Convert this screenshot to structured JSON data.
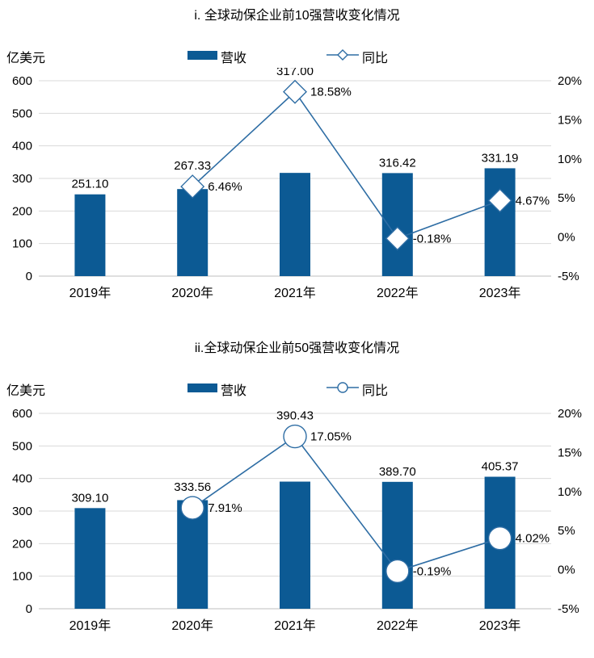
{
  "colors": {
    "bar": "#0c5a94",
    "line": "#2e6da4",
    "grid": "#d9d9d9",
    "axis_line": "#bfbfbf",
    "text": "#000000",
    "marker_fill": "#ffffff",
    "background": "#ffffff"
  },
  "charts": [
    {
      "title": "i. 全球动保企业前10强营收变化情况",
      "unit_label": "亿美元",
      "legend": [
        {
          "label": "营收",
          "marker": "bar"
        },
        {
          "label": "同比",
          "marker": "line-diamond"
        }
      ]
    },
    {
      "title": "ii.全球动保企业前50强营收变化情况",
      "unit_label": "亿美元",
      "legend": [
        {
          "label": "营收",
          "marker": "bar"
        },
        {
          "label": "同比",
          "marker": "line-circle"
        }
      ]
    }
  ],
  "chart_data": [
    {
      "type": "bar+line",
      "title": "i. 全球动保企业前10强营收变化情况",
      "categories": [
        "2019年",
        "2020年",
        "2021年",
        "2022年",
        "2023年"
      ],
      "series": [
        {
          "name": "营收",
          "type": "bar",
          "axis": "left",
          "values": [
            251.1,
            267.33,
            317.0,
            316.42,
            331.19
          ],
          "value_labels": [
            "251.10",
            "267.33",
            "317.00",
            "316.42",
            "331.19"
          ]
        },
        {
          "name": "同比",
          "type": "line",
          "axis": "right",
          "marker": "diamond",
          "values": [
            null,
            6.46,
            18.58,
            -0.18,
            4.67
          ],
          "value_labels": [
            null,
            "6.46%",
            "18.58%",
            "-0.18%",
            "4.67%"
          ]
        }
      ],
      "left_axis": {
        "label": "亿美元",
        "min": 0,
        "max": 600,
        "step": 100,
        "ticks": [
          "600",
          "500",
          "400",
          "300",
          "200",
          "100",
          "0"
        ]
      },
      "right_axis": {
        "min": -5,
        "max": 20,
        "step": 5,
        "ticks": [
          "20%",
          "15%",
          "10%",
          "5%",
          "0%",
          "-5%"
        ]
      },
      "grid": "horizontal",
      "legend_position": "top"
    },
    {
      "type": "bar+line",
      "title": "ii.全球动保企业前50强营收变化情况",
      "categories": [
        "2019年",
        "2020年",
        "2021年",
        "2022年",
        "2023年"
      ],
      "series": [
        {
          "name": "营收",
          "type": "bar",
          "axis": "left",
          "values": [
            309.1,
            333.56,
            390.43,
            389.7,
            405.37
          ],
          "value_labels": [
            "309.10",
            "333.56",
            "390.43",
            "389.70",
            "405.37"
          ]
        },
        {
          "name": "同比",
          "type": "line",
          "axis": "right",
          "marker": "circle",
          "values": [
            null,
            7.91,
            17.05,
            -0.19,
            4.02
          ],
          "value_labels": [
            null,
            "7.91%",
            "17.05%",
            "-0.19%",
            "4.02%"
          ]
        }
      ],
      "left_axis": {
        "label": "亿美元",
        "min": 0,
        "max": 600,
        "step": 100,
        "ticks": [
          "600",
          "500",
          "400",
          "300",
          "200",
          "100",
          "0"
        ]
      },
      "right_axis": {
        "min": -5,
        "max": 20,
        "step": 5,
        "ticks": [
          "20%",
          "15%",
          "10%",
          "5%",
          "0%",
          "-5%"
        ]
      },
      "grid": "horizontal",
      "legend_position": "top"
    }
  ]
}
